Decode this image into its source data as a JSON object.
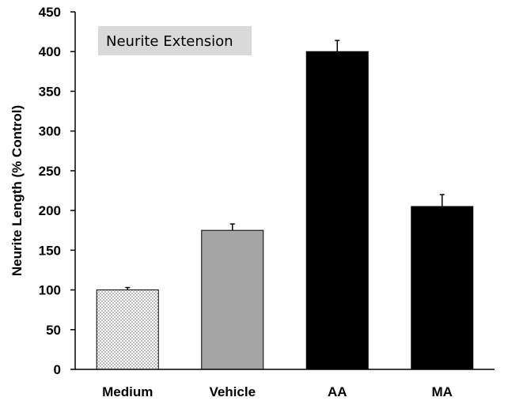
{
  "chart_data": {
    "type": "bar",
    "annotation": "Neurite Extension",
    "categories": [
      "Medium",
      "Vehicle",
      "AA",
      "MA"
    ],
    "values": [
      100,
      175,
      400,
      205
    ],
    "error": [
      3,
      8,
      14,
      15
    ],
    "ylabel": "Neurite Length (% Control)",
    "xlabel": "",
    "ylim": [
      0,
      450
    ],
    "yticks": [
      0,
      50,
      100,
      150,
      200,
      250,
      300,
      350,
      400,
      450
    ],
    "grid": false,
    "legend": "none",
    "bar_fills": [
      "dotted-white",
      "#a6a6a6",
      "#000000",
      "#000000"
    ]
  }
}
